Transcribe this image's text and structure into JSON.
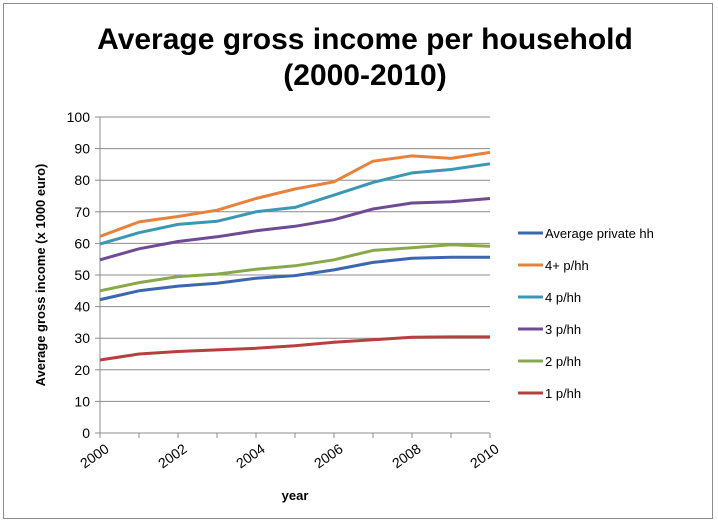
{
  "chart_data": {
    "type": "line",
    "title_line1": "Average gross income per household",
    "title_line2": "(2000-2010)",
    "xlabel": "year",
    "ylabel": "Average gross income (x 1000 euro)",
    "ylim": [
      0,
      100
    ],
    "yticks": [
      0,
      10,
      20,
      30,
      40,
      50,
      60,
      70,
      80,
      90,
      100
    ],
    "xlim": [
      2000,
      2010
    ],
    "xticks": [
      "2000",
      "2002",
      "2004",
      "2006",
      "2008",
      "2010"
    ],
    "x": [
      2000,
      2001,
      2002,
      2003,
      2004,
      2005,
      2006,
      2007,
      2008,
      2009,
      2010
    ],
    "grid": "horizontal",
    "legend_position": "right",
    "series": [
      {
        "name": "Average private hh",
        "color": "#3A67AE",
        "values": [
          42.2,
          45.0,
          46.5,
          47.4,
          49.0,
          49.8,
          51.6,
          54.0,
          55.3,
          55.6,
          55.6
        ]
      },
      {
        "name": "4+ p/hh",
        "color": "#E8823A",
        "values": [
          62.2,
          66.8,
          68.5,
          70.5,
          74.2,
          77.2,
          79.5,
          86.0,
          87.7,
          86.9,
          88.8
        ]
      },
      {
        "name": "4 p/hh",
        "color": "#3A98B4",
        "values": [
          59.8,
          63.4,
          66.0,
          67.0,
          70.0,
          71.4,
          75.3,
          79.3,
          82.3,
          83.4,
          85.2
        ]
      },
      {
        "name": "3 p/hh",
        "color": "#6F4B94",
        "values": [
          54.8,
          58.3,
          60.6,
          62.1,
          64.0,
          65.4,
          67.5,
          70.9,
          72.8,
          73.2,
          74.2
        ]
      },
      {
        "name": "2 p/hh",
        "color": "#89A84A",
        "values": [
          45.0,
          47.6,
          49.5,
          50.3,
          51.8,
          52.9,
          54.8,
          57.8,
          58.6,
          59.6,
          59.1
        ]
      },
      {
        "name": "1 p/hh",
        "color": "#B7403F",
        "values": [
          23.1,
          25.0,
          25.8,
          26.3,
          26.8,
          27.6,
          28.7,
          29.5,
          30.3,
          30.4,
          30.4
        ]
      }
    ]
  }
}
